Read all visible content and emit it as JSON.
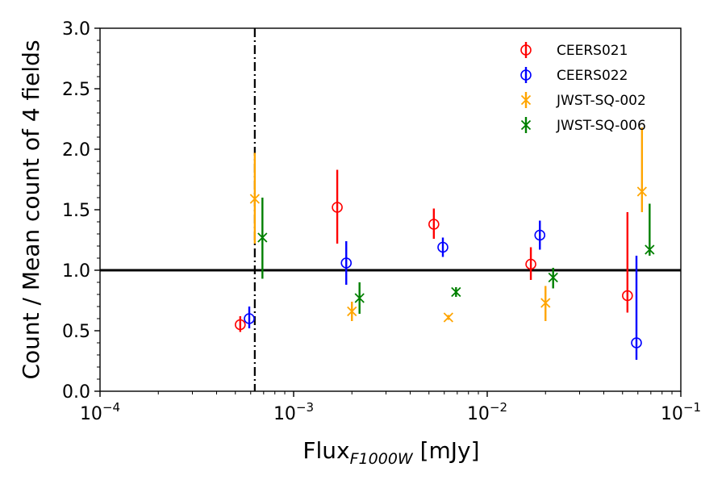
{
  "chart_data": {
    "type": "scatter",
    "x_scale": "log",
    "xlim": [
      0.0001,
      0.1
    ],
    "ylim": [
      0.0,
      3.0
    ],
    "xlabel_main": "Flux",
    "xlabel_sub": "F1000W",
    "xlabel_unit": " [mJy]",
    "ylabel": "Count / Mean count of 4 fields",
    "x_ticks": [
      {
        "value": 0.0001,
        "base": "10",
        "exp": "−4"
      },
      {
        "value": 0.001,
        "base": "10",
        "exp": "−3"
      },
      {
        "value": 0.01,
        "base": "10",
        "exp": "−2"
      },
      {
        "value": 0.1,
        "base": "10",
        "exp": "−1"
      }
    ],
    "y_ticks": [
      {
        "value": 0.0,
        "label": "0.0"
      },
      {
        "value": 0.5,
        "label": "0.5"
      },
      {
        "value": 1.0,
        "label": "1.0"
      },
      {
        "value": 1.5,
        "label": "1.5"
      },
      {
        "value": 2.0,
        "label": "2.0"
      },
      {
        "value": 2.5,
        "label": "2.5"
      },
      {
        "value": 3.0,
        "label": "3.0"
      }
    ],
    "hline": {
      "y": 1.0,
      "color": "#000000"
    },
    "vline": {
      "x": 0.00063,
      "style": "dashdot",
      "color": "#000000"
    },
    "legend_position": "top-right",
    "series": [
      {
        "name": "CEERS021",
        "color": "#ff0000",
        "marker": "circle",
        "points": [
          {
            "x": 0.00053,
            "y": 0.55,
            "lo": 0.49,
            "hi": 0.62
          },
          {
            "x": 0.00168,
            "y": 1.52,
            "lo": 1.22,
            "hi": 1.83
          },
          {
            "x": 0.0053,
            "y": 1.38,
            "lo": 1.26,
            "hi": 1.51
          },
          {
            "x": 0.0168,
            "y": 1.05,
            "lo": 0.92,
            "hi": 1.19
          },
          {
            "x": 0.053,
            "y": 0.79,
            "lo": 0.65,
            "hi": 1.48
          }
        ]
      },
      {
        "name": "CEERS022",
        "color": "#0000ff",
        "marker": "circle",
        "points": [
          {
            "x": 0.00059,
            "y": 0.6,
            "lo": 0.52,
            "hi": 0.7
          },
          {
            "x": 0.00187,
            "y": 1.06,
            "lo": 0.88,
            "hi": 1.24
          },
          {
            "x": 0.0059,
            "y": 1.19,
            "lo": 1.11,
            "hi": 1.27
          },
          {
            "x": 0.0187,
            "y": 1.29,
            "lo": 1.17,
            "hi": 1.41
          },
          {
            "x": 0.059,
            "y": 0.4,
            "lo": 0.26,
            "hi": 1.12
          }
        ]
      },
      {
        "name": "JWST-SQ-002",
        "color": "#ffa500",
        "marker": "x",
        "points": [
          {
            "x": 0.00063,
            "y": 1.59,
            "lo": 1.22,
            "hi": 1.97
          },
          {
            "x": 0.002,
            "y": 0.66,
            "lo": 0.58,
            "hi": 0.74
          },
          {
            "x": 0.0063,
            "y": 0.61,
            "lo": 0.59,
            "hi": 0.63
          },
          {
            "x": 0.02,
            "y": 0.73,
            "lo": 0.58,
            "hi": 0.87
          },
          {
            "x": 0.063,
            "y": 1.65,
            "lo": 1.48,
            "hi": 2.18
          }
        ]
      },
      {
        "name": "JWST-SQ-006",
        "color": "#008000",
        "marker": "x",
        "points": [
          {
            "x": 0.00069,
            "y": 1.27,
            "lo": 0.93,
            "hi": 1.6
          },
          {
            "x": 0.00219,
            "y": 0.77,
            "lo": 0.64,
            "hi": 0.9
          },
          {
            "x": 0.0069,
            "y": 0.82,
            "lo": 0.78,
            "hi": 0.86
          },
          {
            "x": 0.0219,
            "y": 0.94,
            "lo": 0.85,
            "hi": 1.02
          },
          {
            "x": 0.069,
            "y": 1.17,
            "lo": 1.12,
            "hi": 1.55
          }
        ]
      }
    ]
  }
}
